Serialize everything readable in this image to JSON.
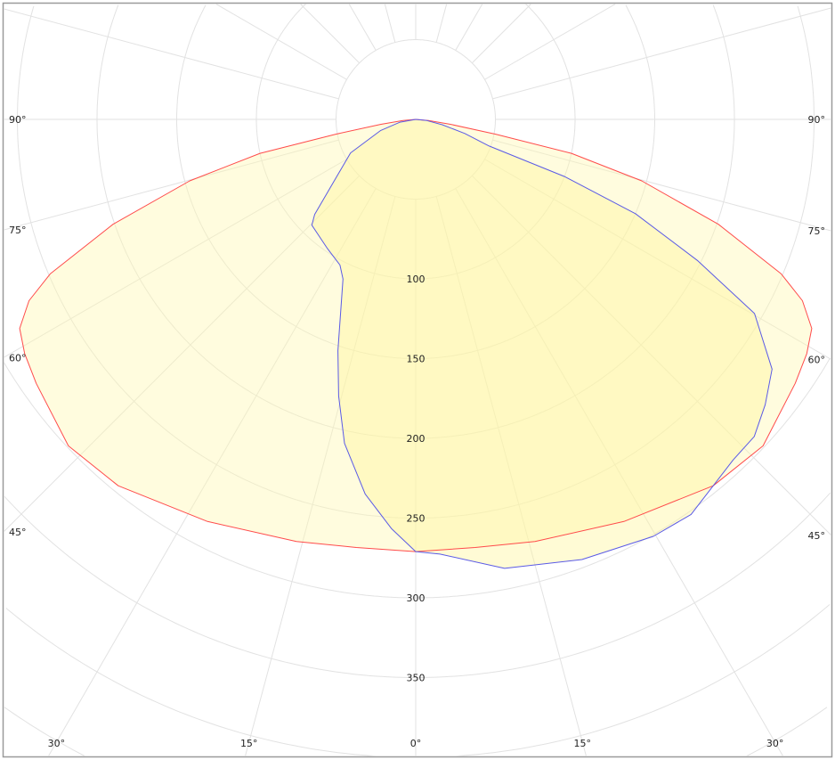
{
  "chart_data": {
    "type": "polar",
    "angle_unit": "degrees",
    "zero_direction": "down",
    "radial_ticks": [
      100,
      150,
      200,
      250,
      300,
      350
    ],
    "radial_grid_step": 50,
    "angle_grid_step": 15,
    "angle_labels": {
      "left": [
        "90°",
        "75°",
        "60°",
        "45°"
      ],
      "right": [
        "90°",
        "75°",
        "60°",
        "45°"
      ],
      "bottom": [
        "30°",
        "15°",
        "0°",
        "15°",
        "30°"
      ]
    },
    "grid": true,
    "series": [
      {
        "color": "#ff4b4b",
        "fill": "#fff9b0",
        "symmetric": true,
        "angles": [
          0,
          7.9,
          15.8,
          27.4,
          39.1,
          46.8,
          55.2,
          59.1,
          62.2,
          64.9,
          67.1,
          70.9,
          74.8,
          77.7,
          79.5,
          82,
          85,
          90
        ],
        "values": [
          271,
          271,
          275,
          284,
          296,
          299,
          290,
          286,
          281,
          268,
          249,
          201,
          147,
          100,
          51,
          22,
          8,
          0
        ]
      },
      {
        "color": "#5a5ae6",
        "fill": "#fff59a",
        "symmetric": false,
        "angles": [
          -90,
          -80,
          -72.5,
          -62.8,
          -46.8,
          -44.5,
          -34.6,
          -27.5,
          -24.5,
          -18.6,
          -15.6,
          -12.4,
          -7.7,
          -3.4,
          0,
          3.2,
          11.2,
          20.7,
          29.7,
          34.9,
          43,
          46.9,
          50.8,
          55,
          60.2,
          63.4,
          66.8,
          69,
          70.1,
          74,
          78.7,
          84,
          90
        ],
        "values": [
          0,
          10,
          23,
          46,
          87,
          93,
          98,
          103,
          110,
          153,
          180,
          208,
          237,
          257,
          271,
          273,
          287,
          295,
          301,
          302,
          292,
          291,
          283,
          273,
          245,
          198,
          150,
          100,
          49,
          32,
          17,
          7,
          0
        ]
      }
    ]
  }
}
